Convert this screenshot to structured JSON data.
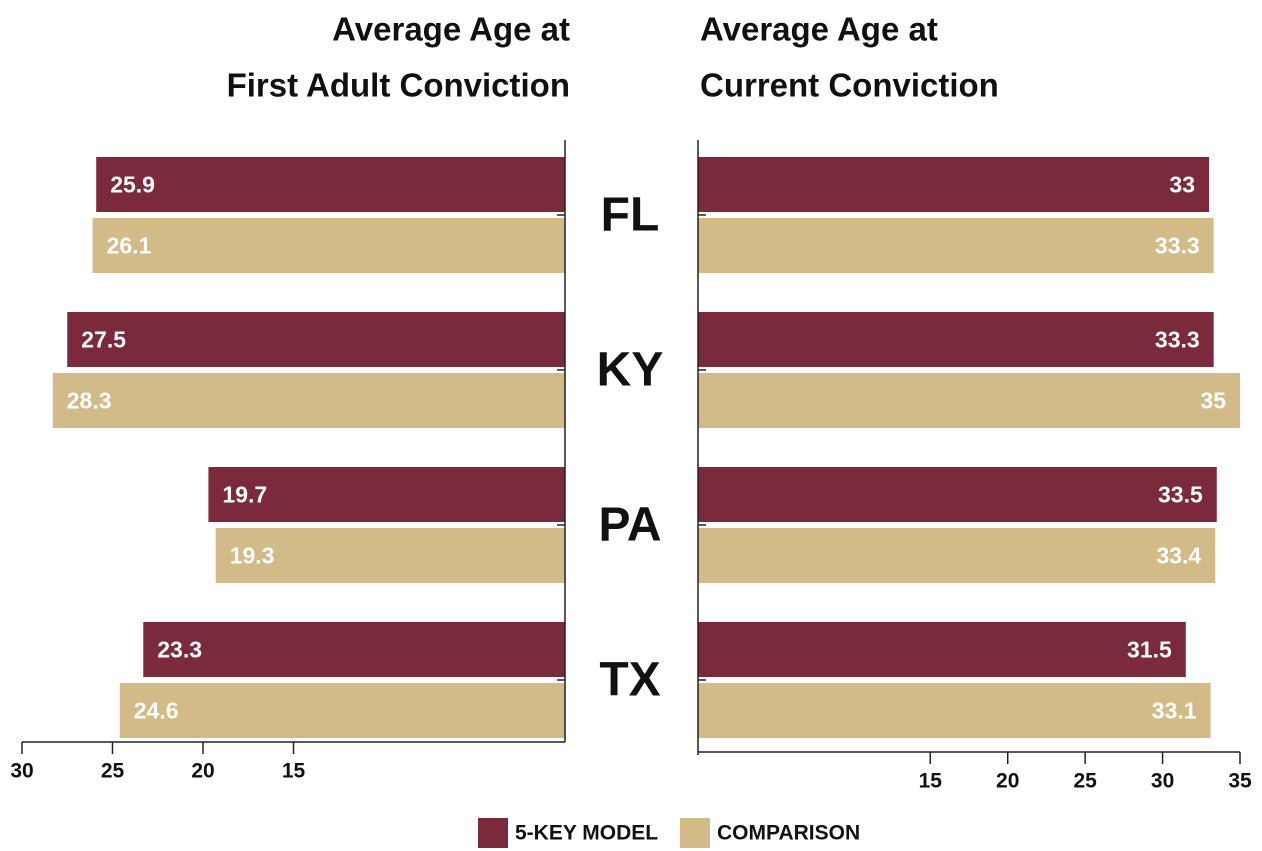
{
  "chart_data": [
    {
      "type": "bar",
      "title": [
        "Average Age at",
        "First Adult Conviction"
      ],
      "categories": [
        "FL",
        "KY",
        "PA",
        "TX"
      ],
      "series": [
        {
          "name": "5-KEY MODEL",
          "color": "#7a2a3a",
          "values": [
            25.9,
            27.5,
            19.7,
            23.3
          ]
        },
        {
          "name": "COMPARISON",
          "color": "#d3bb88",
          "values": [
            26.1,
            28.3,
            19.3,
            24.6
          ]
        }
      ],
      "xlim": [
        0,
        30
      ],
      "xticks": [
        30,
        25,
        20,
        15
      ],
      "reversed": true
    },
    {
      "type": "bar",
      "title": [
        "Average Age at",
        "Current Conviction"
      ],
      "series": [
        {
          "name": "5-KEY MODEL",
          "color": "#7a2a3a",
          "values": [
            33,
            33.3,
            33.5,
            31.5
          ]
        },
        {
          "name": "COMPARISON",
          "color": "#d3bb88",
          "values": [
            33.3,
            35,
            33.4,
            33.1
          ]
        }
      ],
      "xlim": [
        0,
        35
      ],
      "xticks": [
        15,
        20,
        25,
        30,
        35
      ],
      "reversed": false
    }
  ]
}
